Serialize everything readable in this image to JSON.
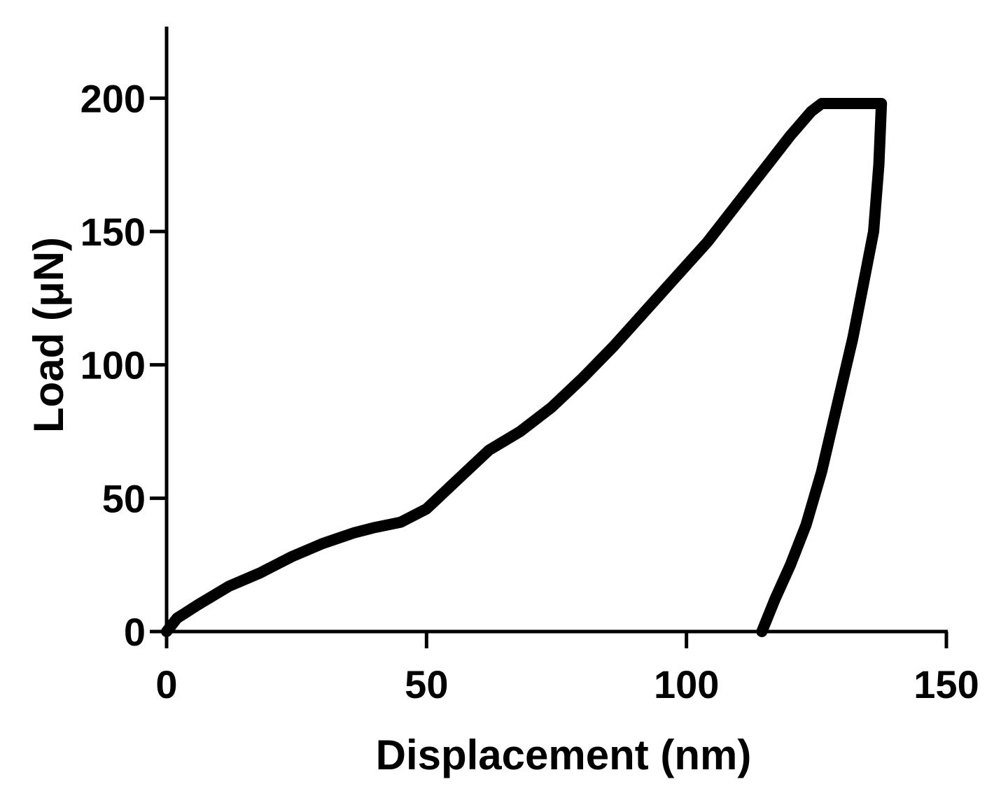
{
  "chart_data": {
    "type": "line",
    "title": "",
    "xlabel": "Displacement (nm)",
    "ylabel": "Load (μN)",
    "xlim": [
      0,
      150
    ],
    "ylim": [
      0,
      225
    ],
    "xticks": [
      0,
      50,
      100,
      150
    ],
    "yticks": [
      0,
      50,
      100,
      150,
      200
    ],
    "xtick_labels": [
      "0",
      "50",
      "100",
      "150"
    ],
    "ytick_labels": [
      "0",
      "50",
      "100",
      "150",
      "200"
    ],
    "grid": false,
    "legend": "none",
    "series": [
      {
        "color": "#000000",
        "x": [
          0,
          2,
          6,
          12,
          18,
          24,
          30,
          36,
          40,
          45,
          50,
          56,
          62,
          68,
          74,
          80,
          86,
          92,
          98,
          104,
          110,
          116,
          120,
          124,
          126,
          128,
          132,
          135,
          137,
          137.5,
          137,
          136,
          134,
          132,
          129,
          126,
          123,
          120,
          117,
          114.5
        ],
        "y": [
          0,
          5,
          10,
          17,
          22,
          28,
          33,
          37,
          39,
          41,
          46,
          57,
          68,
          75,
          84,
          95,
          107,
          120,
          133,
          146,
          161,
          176,
          186,
          195,
          198,
          198,
          198,
          198,
          198,
          198,
          175,
          150,
          130,
          110,
          85,
          60,
          40,
          25,
          12,
          0
        ]
      }
    ]
  }
}
